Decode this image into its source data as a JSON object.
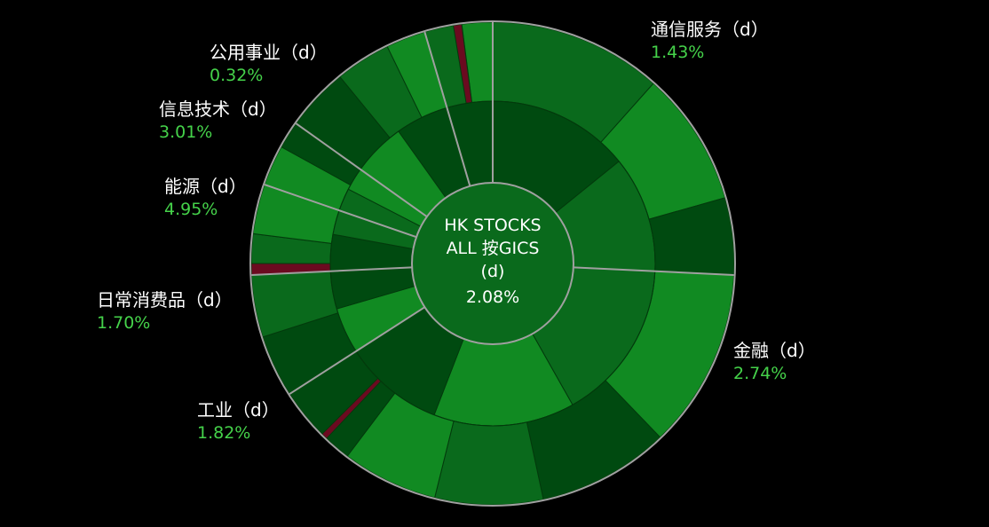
{
  "chart_data": {
    "type": "sunburst",
    "center": {
      "lines": [
        "HK STOCKS",
        "ALL 按GICS",
        "(d)"
      ],
      "change": "2.08%"
    },
    "sectors": [
      {
        "name": "通信服务（d）",
        "change": "1.43%",
        "value": 17.0
      },
      {
        "name": "金融（d）",
        "change": "2.74%",
        "value": 26.5
      },
      {
        "name": "工业（d）",
        "change": "1.82%",
        "value": 5.5
      },
      {
        "name": "日常消费品（d）",
        "change": "1.70%",
        "value": 4.0
      },
      {
        "name": "能源（d）",
        "change": "4.95%",
        "value": 3.0
      },
      {
        "name": "信息技术（d）",
        "change": "3.01%",
        "value": 7.0
      },
      {
        "name": "公用事业（d）",
        "change": "0.32%",
        "value": 3.0
      }
    ],
    "colors": {
      "background": "#000000",
      "positive_dark": "#004a10",
      "positive_mid": "#0a6a1c",
      "positive_bright": "#118a22",
      "negative": "#6b0a20",
      "separator": "#a0a0a0",
      "change_text": "#45d24a"
    }
  }
}
